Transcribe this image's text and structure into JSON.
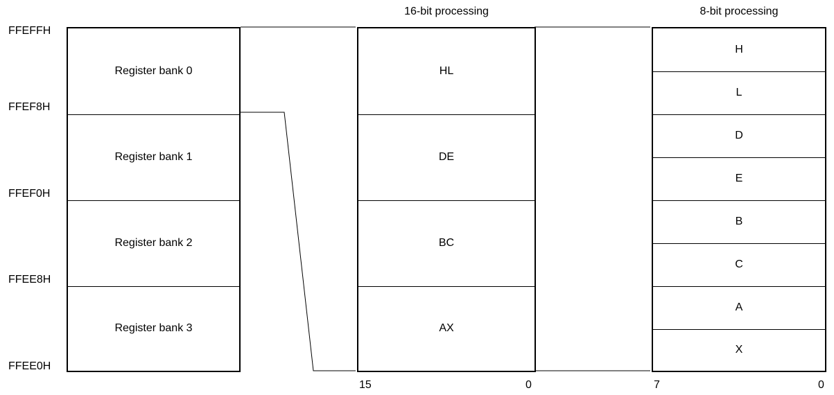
{
  "addresses": [
    "FFEFFH",
    "FFEF8H",
    "FFEF0H",
    "FFEE8H",
    "FFEE0H"
  ],
  "banks": [
    "Register bank 0",
    "Register bank 1",
    "Register bank 2",
    "Register bank 3"
  ],
  "pairs_header": "16-bit processing",
  "pairs": [
    "HL",
    "DE",
    "BC",
    "AX"
  ],
  "pairs_bits": {
    "high": "15",
    "low": "0"
  },
  "regs_header": "8-bit processing",
  "regs": [
    "H",
    "L",
    "D",
    "E",
    "B",
    "C",
    "A",
    "X"
  ],
  "regs_bits": {
    "high": "7",
    "low": "0"
  }
}
